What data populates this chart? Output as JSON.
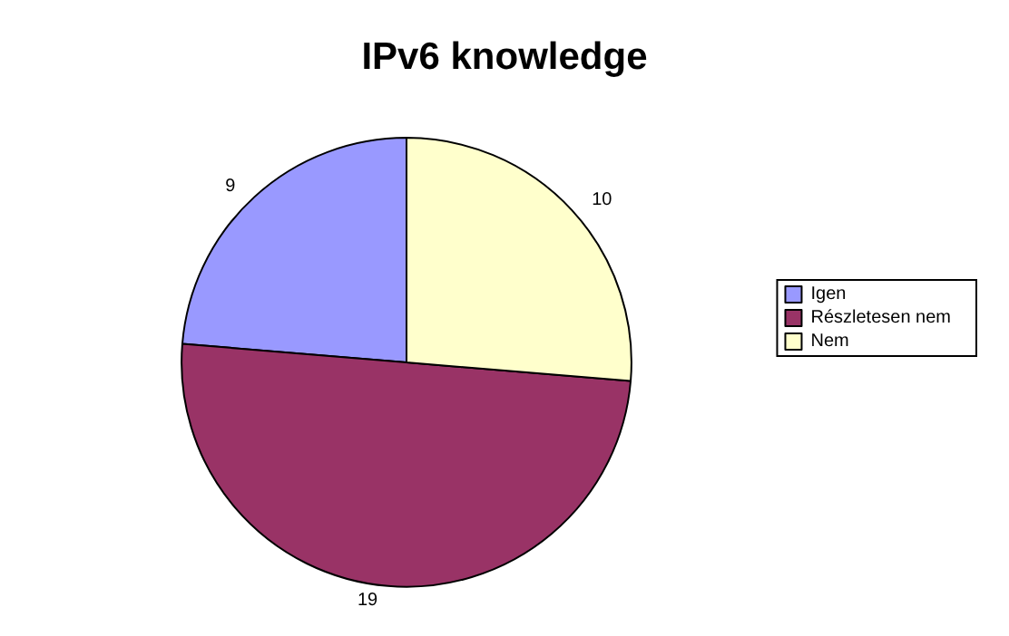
{
  "chart_data": {
    "type": "pie",
    "title": "IPv6 knowledge",
    "categories": [
      "Igen",
      "Részletesen nem",
      "Nem"
    ],
    "values": [
      9,
      19,
      10
    ],
    "colors": [
      "#9999ff",
      "#993366",
      "#ffffcc"
    ],
    "data_labels": true,
    "legend": "right"
  }
}
